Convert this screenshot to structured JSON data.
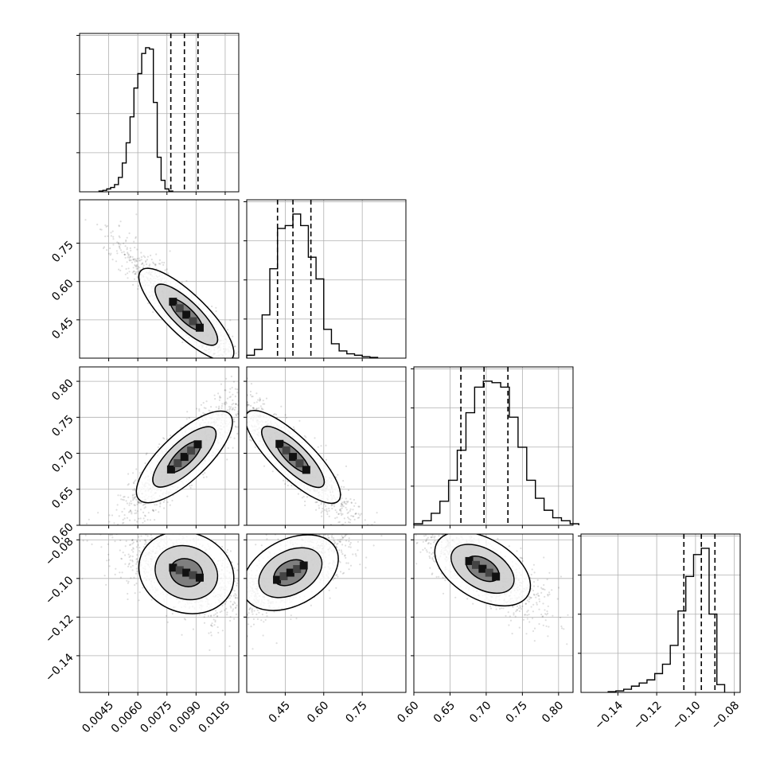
{
  "chart_data": {
    "type": "corner",
    "title": "",
    "parameters": [
      {
        "name": "",
        "range": [
          0.003,
          0.0112
        ],
        "ticks": [
          0.0045,
          0.006,
          0.0075,
          0.009,
          0.0105
        ],
        "tick_labels": [
          "0.0045",
          "0.0060",
          "0.0075",
          "0.0090",
          "0.0105"
        ],
        "quantiles": [
          0.0077,
          0.0084,
          0.0091
        ],
        "histogram": {
          "counts": [
            0.5,
            1,
            2,
            3,
            5,
            10,
            20,
            34,
            52,
            72,
            82,
            96,
            100,
            99,
            62,
            24,
            8,
            2,
            0.5
          ],
          "edges": [
            0.004,
            0.0042,
            0.0044,
            0.0046,
            0.0048,
            0.005,
            0.0052,
            0.0054,
            0.0056,
            0.0058,
            0.006,
            0.0062,
            0.0064,
            0.0066,
            0.0068,
            0.007,
            0.0072,
            0.0074,
            0.0076,
            0.0078
          ]
        }
      },
      {
        "name": "",
        "range": [
          0.3,
          0.92
        ],
        "ticks": [
          0.45,
          0.6,
          0.75
        ],
        "tick_labels": [
          "0.45",
          "0.60",
          "0.75"
        ],
        "quantiles": [
          0.42,
          0.48,
          0.55
        ],
        "histogram": {
          "counts": [
            2,
            6,
            30,
            62,
            90,
            92,
            100,
            92,
            70,
            55,
            20,
            10,
            5,
            3,
            2,
            1,
            0.5
          ],
          "edges": [
            0.3,
            0.33,
            0.36,
            0.39,
            0.42,
            0.45,
            0.48,
            0.51,
            0.54,
            0.57,
            0.6,
            0.63,
            0.66,
            0.69,
            0.72,
            0.75,
            0.78,
            0.81
          ]
        }
      },
      {
        "name": "",
        "range": [
          0.6,
          0.82
        ],
        "ticks": [
          0.6,
          0.65,
          0.7,
          0.75,
          0.8
        ],
        "tick_labels": [
          "0.60",
          "0.65",
          "0.70",
          "0.75",
          "0.80"
        ],
        "quantiles": [
          0.665,
          0.697,
          0.73
        ],
        "histogram": {
          "counts": [
            1,
            3,
            8,
            16,
            30,
            50,
            75,
            92,
            96,
            95,
            92,
            72,
            52,
            30,
            18,
            10,
            5,
            3,
            1
          ],
          "edges": [
            0.6,
            0.612,
            0.624,
            0.636,
            0.648,
            0.66,
            0.672,
            0.684,
            0.696,
            0.708,
            0.72,
            0.732,
            0.744,
            0.756,
            0.768,
            0.78,
            0.792,
            0.804,
            0.816,
            0.828
          ]
        }
      },
      {
        "name": "",
        "range": [
          -0.159,
          -0.077
        ],
        "ticks": [
          -0.14,
          -0.12,
          -0.1,
          -0.08
        ],
        "tick_labels": [
          "−0.14",
          "−0.12",
          "−0.10",
          "−0.08"
        ],
        "quantiles": [
          -0.106,
          -0.097,
          -0.09
        ],
        "histogram": {
          "counts": [
            0.5,
            1,
            2,
            4,
            6,
            8,
            12,
            18,
            30,
            52,
            74,
            88,
            92,
            50,
            5
          ],
          "edges": [
            -0.145,
            -0.141,
            -0.137,
            -0.133,
            -0.129,
            -0.125,
            -0.121,
            -0.117,
            -0.113,
            -0.109,
            -0.105,
            -0.101,
            -0.097,
            -0.093,
            -0.089,
            -0.085
          ]
        }
      }
    ],
    "pairs": [
      {
        "x": 0,
        "y": 1,
        "center": [
          0.0085,
          0.47
        ],
        "rho": -0.93
      },
      {
        "x": 0,
        "y": 2,
        "center": [
          0.0084,
          0.695
        ],
        "rho": 0.9
      },
      {
        "x": 1,
        "y": 2,
        "center": [
          0.48,
          0.695
        ],
        "rho": -0.93
      },
      {
        "x": 0,
        "y": 3,
        "center": [
          0.0085,
          -0.097
        ],
        "rho": -0.5
      },
      {
        "x": 1,
        "y": 3,
        "center": [
          0.47,
          -0.097
        ],
        "rho": 0.72
      },
      {
        "x": 2,
        "y": 3,
        "center": [
          0.695,
          -0.095
        ],
        "rho": -0.78
      }
    ],
    "grid": true,
    "legend": "none"
  }
}
